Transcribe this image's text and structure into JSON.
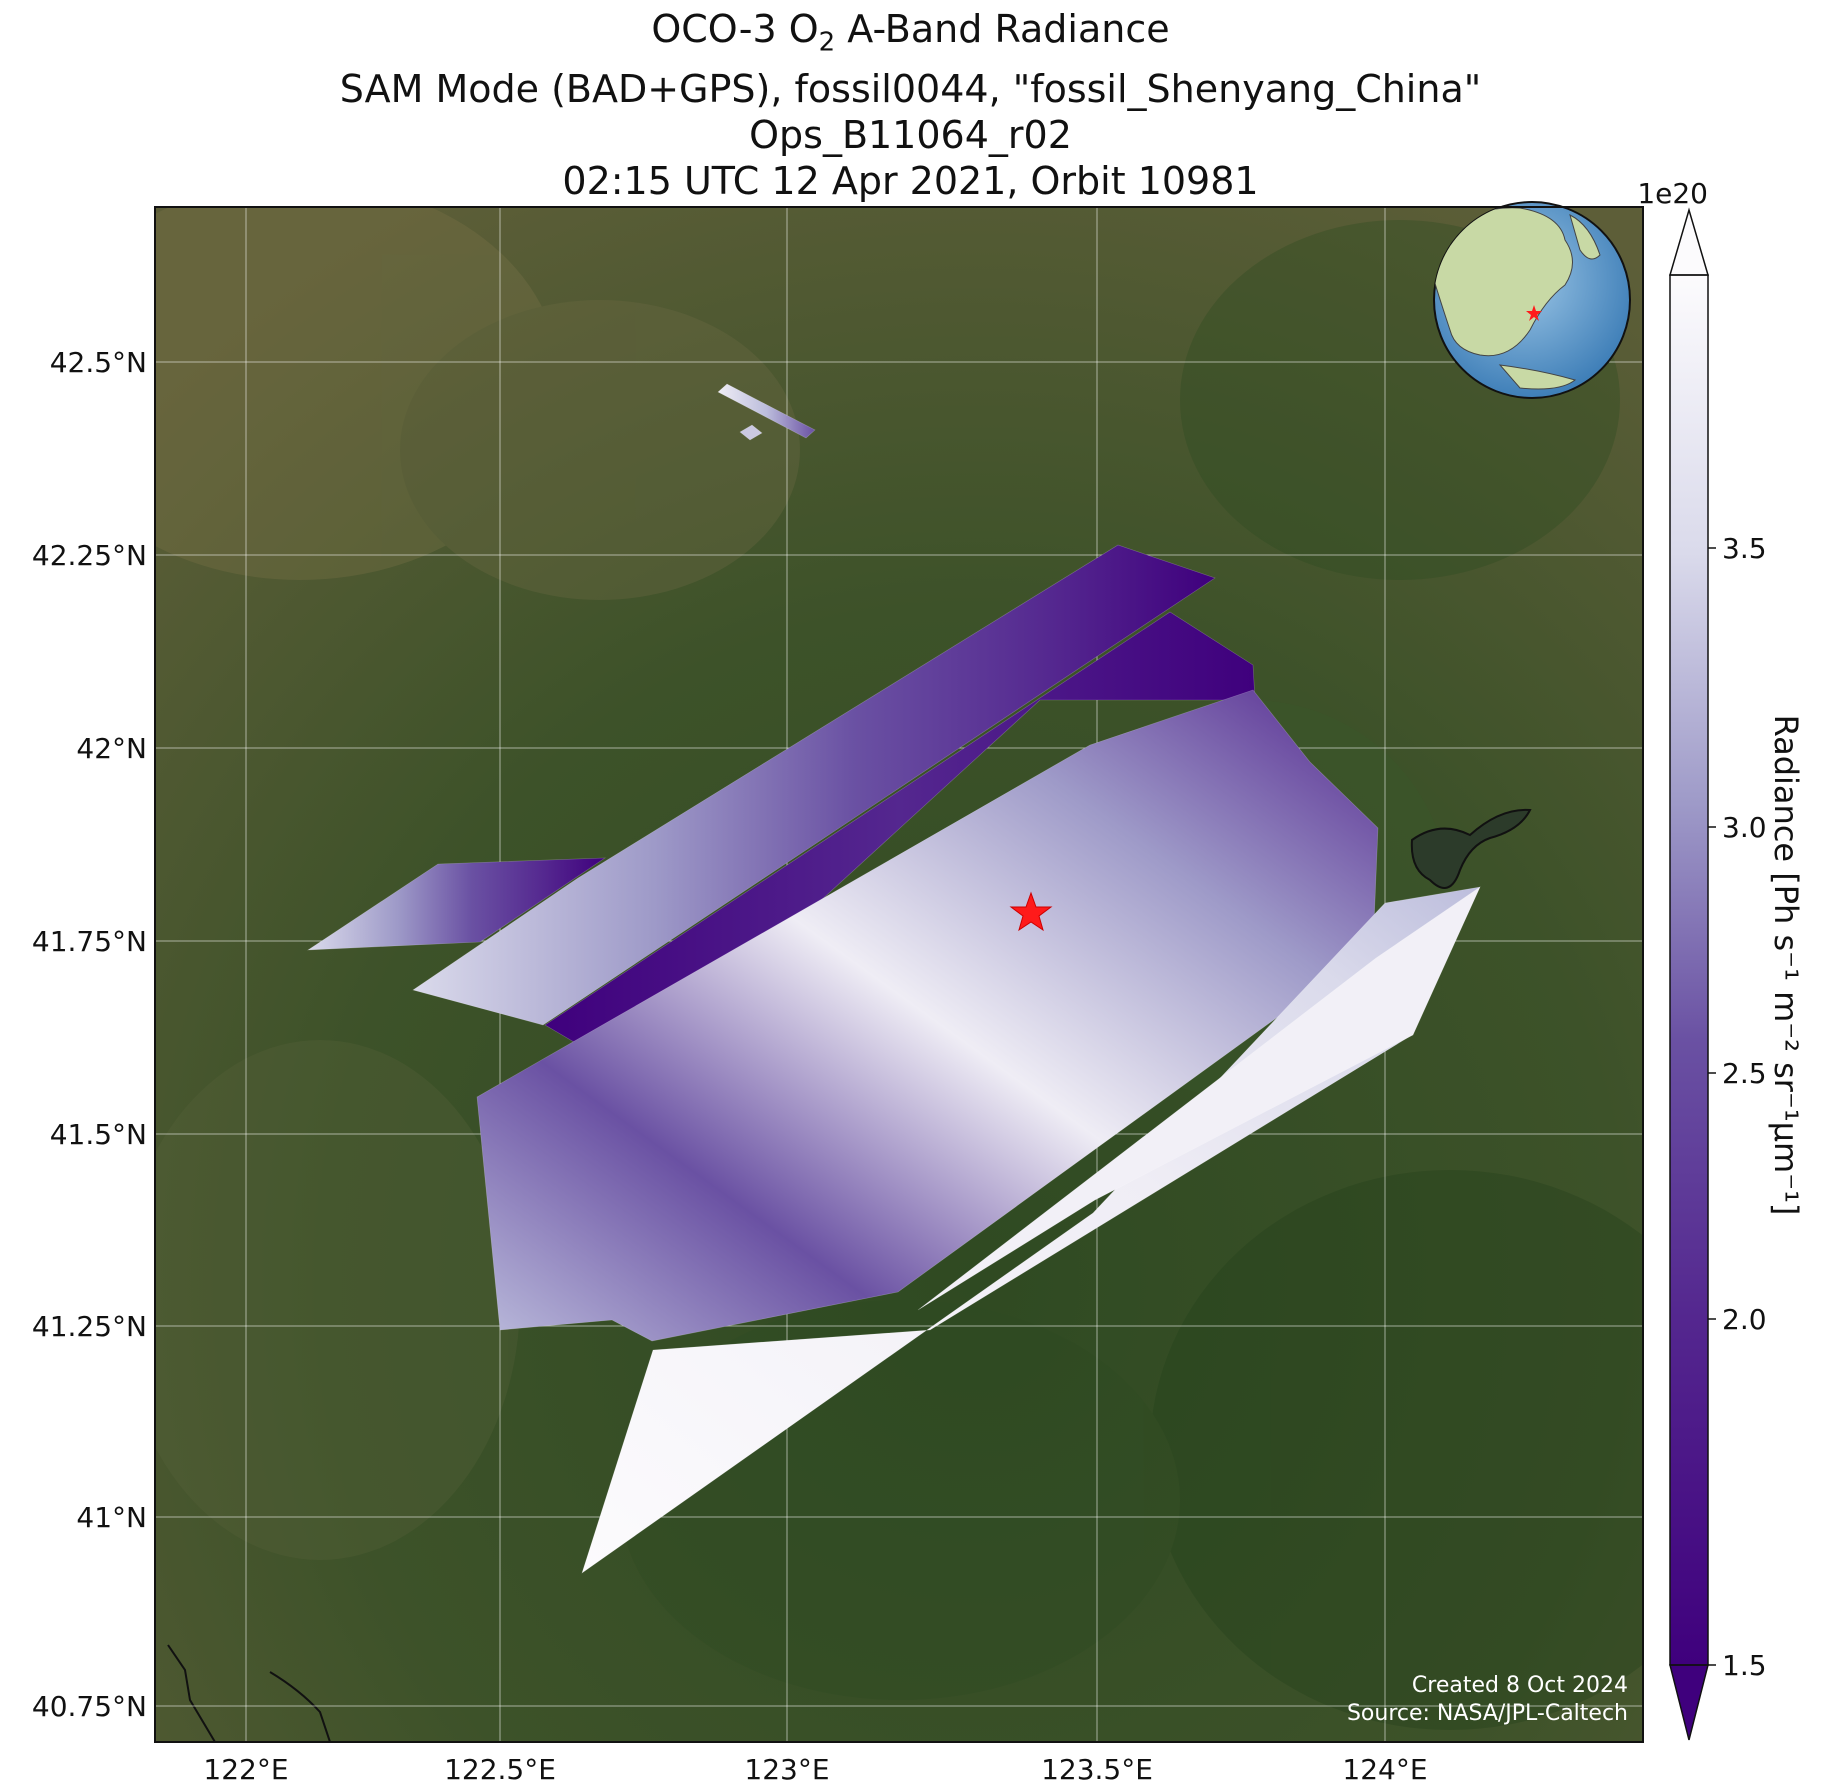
{
  "title": {
    "line1_prefix": "OCO-3 O",
    "line1_sub": "2",
    "line1_suffix": " A-Band Radiance",
    "line2": "SAM Mode (BAD+GPS), fossil0044, \"fossil_Shenyang_China\"",
    "line3": "Ops_B11064_r02",
    "line4": "02:15 UTC 12 Apr 2021, Orbit 10981"
  },
  "map": {
    "lat_ticks": [
      "42.5°N",
      "42.25°N",
      "42°N",
      "41.75°N",
      "41.5°N",
      "41.25°N",
      "41°N",
      "40.75°N"
    ],
    "lon_ticks": [
      "122°E",
      "122.5°E",
      "123°E",
      "123.5°E",
      "124°E"
    ],
    "credit_line1": "Created 8 Oct 2024",
    "credit_line2": "Source: NASA/JPL-Caltech",
    "target_marker": "red-star",
    "colors": {
      "land_dark": "#3f4f2a",
      "land_light": "#6b6e4a",
      "target_star": "#ff1a1a",
      "low_radiance": "#3f007d",
      "high_radiance": "#fcfbfd"
    }
  },
  "colorbar": {
    "label": "Radiance [Ph s⁻¹ m⁻² sr⁻¹μm⁻¹]",
    "exponent": "1e20",
    "ticks": [
      "1.5",
      "2.0",
      "2.5",
      "3.0",
      "3.5"
    ],
    "range": [
      1.5,
      3.85
    ],
    "colormap": "Purples_r"
  }
}
